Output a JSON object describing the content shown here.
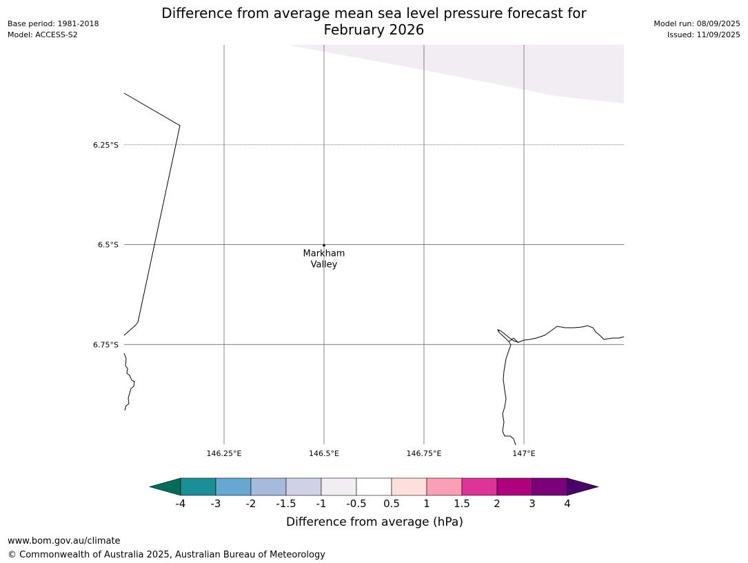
{
  "header": {
    "base_period": "Base period: 1981-2018",
    "model": "Model: ACCESS-S2",
    "title_line1": "Difference from average mean sea level pressure forecast for",
    "title_line2": "February 2026",
    "model_run": "Model run: 08/09/2025",
    "issued": "Issued: 11/09/2025"
  },
  "map": {
    "lon_range": [
      146.0,
      147.25
    ],
    "lat_range": [
      -6.0,
      -7.0
    ],
    "lat_ticks": [
      {
        "value": -6.25,
        "label": "6.25°S"
      },
      {
        "value": -6.5,
        "label": "6.5°S"
      },
      {
        "value": -6.75,
        "label": "6.75°S"
      }
    ],
    "lon_ticks": [
      {
        "value": 146.25,
        "label": "146.25°E"
      },
      {
        "value": 146.5,
        "label": "146.5°E"
      },
      {
        "value": 146.75,
        "label": "146.75°E"
      },
      {
        "value": 147.0,
        "label": "147°E"
      }
    ],
    "places": [
      {
        "name_line1": "Markham",
        "name_line2": "Valley",
        "lon": 146.5,
        "lat": -6.5
      }
    ],
    "shaded_region_color": "#f2ecf3"
  },
  "colorbar": {
    "label": "Difference from average (hPa)",
    "ticks": [
      "-4",
      "-3",
      "-2",
      "-1.5",
      "-1",
      "-0.5",
      "0.5",
      "1",
      "1.5",
      "2",
      "3",
      "4"
    ],
    "colors": [
      "#1a9096",
      "#67a8d0",
      "#a6bbdb",
      "#d0d1e6",
      "#f2ecf3",
      "#ffffff",
      "#fde0dd",
      "#f9a0b5",
      "#dd3497",
      "#ae017e",
      "#7a0177"
    ],
    "under_color": "#016c59",
    "over_color": "#49006a"
  },
  "footer": {
    "url": "www.bom.gov.au/climate",
    "copyright": "© Commonwealth of Australia 2025, Australian Bureau of Meteorology"
  }
}
